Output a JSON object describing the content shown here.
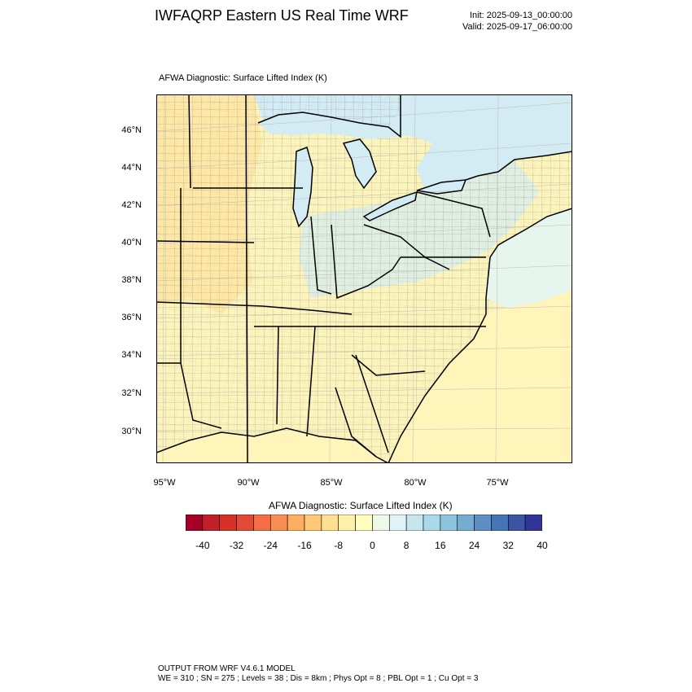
{
  "header": {
    "title": "IWFAQRP Eastern US Real Time WRF",
    "init": "Init: 2025-09-13_00:00:00",
    "valid": "Valid: 2025-09-17_06:00:00"
  },
  "map": {
    "field_label": "AFWA Diagnostic: Surface Lifted Index   (K)",
    "lat_labels": [
      "46°N",
      "44°N",
      "42°N",
      "40°N",
      "38°N",
      "36°N",
      "34°N",
      "32°N",
      "30°N"
    ],
    "lon_labels": [
      "95°W",
      "90°W",
      "85°W",
      "80°W",
      "75°W"
    ],
    "colors": {
      "land_yellow": "#fbf4bd",
      "land_orange": "#fde3a0",
      "lake_blue": "#d3ebf2",
      "ocean_green": "#e7f5ef",
      "ocean_yellow": "#fff4b9",
      "border": "#000000"
    }
  },
  "colorbar": {
    "title": "AFWA Diagnostic: Surface Lifted Index  (K)",
    "tick_labels": [
      "-40",
      "-32",
      "-24",
      "-16",
      "-8",
      "0",
      "8",
      "16",
      "24",
      "32",
      "40"
    ],
    "colors": [
      "#a50026",
      "#c11f2a",
      "#d73027",
      "#e34a33",
      "#f46d43",
      "#f88e52",
      "#fdae61",
      "#fec877",
      "#fee090",
      "#fff1aa",
      "#ffffbf",
      "#eef8e6",
      "#e0f3f8",
      "#c6e6ee",
      "#abd9e9",
      "#8ec3dd",
      "#74add1",
      "#5e8fc4",
      "#4575b4",
      "#3b54a4",
      "#313695"
    ]
  },
  "footer": {
    "line1": "OUTPUT FROM WRF V4.6.1 MODEL",
    "line2": "WE = 310 ; SN = 275 ; Levels = 38 ; Dis = 8km ; Phys Opt = 8 ; PBL Opt = 1 ; Cu Opt = 3"
  }
}
